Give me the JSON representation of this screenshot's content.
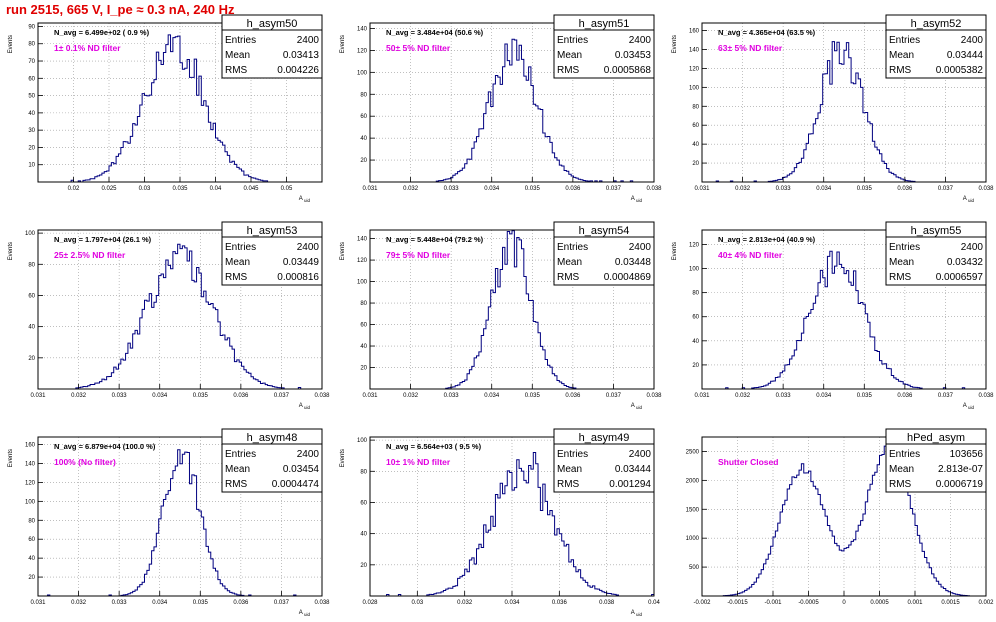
{
  "page": {
    "title": "run 2515,   665 V, I_pe ≈ 0.3 nA, 240 Hz"
  },
  "chart_data": [
    {
      "type": "histogram",
      "name": "h_asym50",
      "navg": "N_avg = 6.499e+02 ( 0.9 %)",
      "filter": "1± 0.1% ND filter",
      "stats": {
        "entries": "2400",
        "mean": "0.03413",
        "rms": "0.004226"
      },
      "ylabel": "Events",
      "xlabel": "A_uid",
      "xlim": [
        0.015,
        0.055
      ],
      "ylim": [
        0,
        92
      ],
      "xticks": [
        0.02,
        0.025,
        0.03,
        0.035,
        0.04,
        0.045,
        0.05
      ],
      "xtick_labels": [
        "0.02",
        "0.025",
        "0.03",
        "0.035",
        "0.04",
        "0.045",
        "0.05"
      ],
      "yticks": [
        10,
        20,
        30,
        40,
        50,
        60,
        70,
        80,
        90
      ],
      "ytick_labels": [
        "10",
        "20",
        "30",
        "40",
        "50",
        "60",
        "70",
        "80",
        "90"
      ],
      "peak": {
        "mean": 0.0341,
        "sigma": 0.0042,
        "height": 80,
        "noise": 0.12
      }
    },
    {
      "type": "histogram",
      "name": "h_asym51",
      "navg": "N_avg = 3.484e+04 (50.6 %)",
      "filter": "50± 5% ND filter",
      "stats": {
        "entries": "2400",
        "mean": "0.03453",
        "rms": "0.0005868"
      },
      "ylabel": "Events",
      "xlabel": "A_uid",
      "xlim": [
        0.031,
        0.038
      ],
      "ylim": [
        0,
        145
      ],
      "xticks": [
        0.031,
        0.032,
        0.033,
        0.034,
        0.035,
        0.036,
        0.037,
        0.038
      ],
      "xtick_labels": [
        "0.031",
        "0.032",
        "0.033",
        "0.034",
        "0.035",
        "0.036",
        "0.037",
        "0.038"
      ],
      "yticks": [
        20,
        40,
        60,
        80,
        100,
        120,
        140
      ],
      "ytick_labels": [
        "20",
        "40",
        "60",
        "80",
        "100",
        "120",
        "140"
      ],
      "peak": {
        "mean": 0.03453,
        "sigma": 0.00059,
        "height": 118,
        "noise": 0.1
      }
    },
    {
      "type": "histogram",
      "name": "h_asym52",
      "navg": "N_avg = 4.365e+04 (63.5 %)",
      "filter": "63± 5% ND filter",
      "stats": {
        "entries": "2400",
        "mean": "0.03444",
        "rms": "0.0005382"
      },
      "ylabel": "Events",
      "xlabel": "A_uid",
      "xlim": [
        0.031,
        0.038
      ],
      "ylim": [
        0,
        168
      ],
      "xticks": [
        0.031,
        0.032,
        0.033,
        0.034,
        0.035,
        0.036,
        0.037,
        0.038
      ],
      "xtick_labels": [
        "0.031",
        "0.032",
        "0.033",
        "0.034",
        "0.035",
        "0.036",
        "0.037",
        "0.038"
      ],
      "yticks": [
        20,
        40,
        60,
        80,
        100,
        120,
        140,
        160
      ],
      "ytick_labels": [
        "20",
        "40",
        "60",
        "80",
        "100",
        "120",
        "140",
        "160"
      ],
      "peak": {
        "mean": 0.03444,
        "sigma": 0.00054,
        "height": 140,
        "noise": 0.12
      }
    },
    {
      "type": "histogram",
      "name": "h_asym53",
      "navg": "N_avg = 1.797e+04 (26.1 %)",
      "filter": "25± 2.5% ND filter",
      "stats": {
        "entries": "2400",
        "mean": "0.03449",
        "rms": "0.000816"
      },
      "ylabel": "Events",
      "xlabel": "A_uid",
      "xlim": [
        0.031,
        0.038
      ],
      "ylim": [
        0,
        102
      ],
      "xticks": [
        0.031,
        0.032,
        0.033,
        0.034,
        0.035,
        0.036,
        0.037,
        0.038
      ],
      "xtick_labels": [
        "0.031",
        "0.032",
        "0.033",
        "0.034",
        "0.035",
        "0.036",
        "0.037",
        "0.038"
      ],
      "yticks": [
        20,
        40,
        60,
        80,
        100
      ],
      "ytick_labels": [
        "20",
        "40",
        "60",
        "80",
        "100"
      ],
      "peak": {
        "mean": 0.03449,
        "sigma": 0.00082,
        "height": 85,
        "noise": 0.12
      }
    },
    {
      "type": "histogram",
      "name": "h_asym54",
      "navg": "N_avg = 5.448e+04 (79.2 %)",
      "filter": "79± 5% ND filter",
      "stats": {
        "entries": "2400",
        "mean": "0.03448",
        "rms": "0.0004869"
      },
      "ylabel": "Events",
      "xlabel": "A_uid",
      "xlim": [
        0.031,
        0.038
      ],
      "ylim": [
        0,
        148
      ],
      "xticks": [
        0.031,
        0.032,
        0.033,
        0.034,
        0.035,
        0.036,
        0.037,
        0.038
      ],
      "xtick_labels": [
        "0.031",
        "0.032",
        "0.033",
        "0.034",
        "0.035",
        "0.036",
        "0.037",
        "0.038"
      ],
      "yticks": [
        20,
        40,
        60,
        80,
        100,
        120,
        140
      ],
      "ytick_labels": [
        "20",
        "40",
        "60",
        "80",
        "100",
        "120",
        "140"
      ],
      "peak": {
        "mean": 0.03448,
        "sigma": 0.00049,
        "height": 135,
        "noise": 0.12
      }
    },
    {
      "type": "histogram",
      "name": "h_asym55",
      "navg": "N_avg = 2.813e+04 (40.9 %)",
      "filter": "40± 4% ND filter",
      "stats": {
        "entries": "2400",
        "mean": "0.03432",
        "rms": "0.0006597"
      },
      "ylabel": "Events",
      "xlabel": "A_uid",
      "xlim": [
        0.031,
        0.038
      ],
      "ylim": [
        0,
        132
      ],
      "xticks": [
        0.031,
        0.032,
        0.033,
        0.034,
        0.035,
        0.036,
        0.037,
        0.038
      ],
      "xtick_labels": [
        "0.031",
        "0.032",
        "0.033",
        "0.034",
        "0.035",
        "0.036",
        "0.037",
        "0.038"
      ],
      "yticks": [
        20,
        40,
        60,
        80,
        100,
        120
      ],
      "ytick_labels": [
        "20",
        "40",
        "60",
        "80",
        "100",
        "120"
      ],
      "peak": {
        "mean": 0.03432,
        "sigma": 0.00066,
        "height": 108,
        "noise": 0.1
      }
    },
    {
      "type": "histogram",
      "name": "h_asym48",
      "navg": "N_avg = 6.879e+04 (100.0 %)",
      "filter": "100% (No filter)",
      "stats": {
        "entries": "2400",
        "mean": "0.03454",
        "rms": "0.0004474"
      },
      "ylabel": "Events",
      "xlabel": "A_uid",
      "xlim": [
        0.031,
        0.038
      ],
      "ylim": [
        0,
        168
      ],
      "xticks": [
        0.031,
        0.032,
        0.033,
        0.034,
        0.035,
        0.036,
        0.037,
        0.038
      ],
      "xtick_labels": [
        "0.031",
        "0.032",
        "0.033",
        "0.034",
        "0.035",
        "0.036",
        "0.037",
        "0.038"
      ],
      "yticks": [
        20,
        40,
        60,
        80,
        100,
        120,
        140,
        160
      ],
      "ytick_labels": [
        "20",
        "40",
        "60",
        "80",
        "100",
        "120",
        "140",
        "160"
      ],
      "peak": {
        "mean": 0.03454,
        "sigma": 0.00045,
        "height": 150,
        "noise": 0.1
      }
    },
    {
      "type": "histogram",
      "name": "h_asym49",
      "navg": "N_avg = 6.564e+03 ( 9.5 %)",
      "filter": "10± 1% ND filter",
      "stats": {
        "entries": "2400",
        "mean": "0.03444",
        "rms": "0.001294"
      },
      "ylabel": "Events",
      "xlabel": "A_uid",
      "xlim": [
        0.028,
        0.04
      ],
      "ylim": [
        0,
        102
      ],
      "xticks": [
        0.028,
        0.03,
        0.032,
        0.034,
        0.036,
        0.038,
        0.04
      ],
      "xtick_labels": [
        "0.028",
        "0.03",
        "0.032",
        "0.034",
        "0.036",
        "0.038",
        "0.04"
      ],
      "yticks": [
        20,
        40,
        60,
        80,
        100
      ],
      "ytick_labels": [
        "20",
        "40",
        "60",
        "80",
        "100"
      ],
      "peak": {
        "mean": 0.03444,
        "sigma": 0.0013,
        "height": 82,
        "noise": 0.14
      }
    },
    {
      "type": "histogram",
      "name": "hPed_asym",
      "navg": "",
      "filter": "Shutter Closed",
      "stats": {
        "entries": "103656",
        "mean": "2.813e-07",
        "rms": "0.0006719"
      },
      "ylabel": "",
      "xlabel": "",
      "xlim": [
        -0.002,
        0.002
      ],
      "ylim": [
        0,
        2750
      ],
      "xticks": [
        -0.002,
        -0.0015,
        -0.001,
        -0.0005,
        0,
        0.0005,
        0.001,
        0.0015,
        0.002
      ],
      "xtick_labels": [
        "-0.002",
        "-0.0015",
        "-0.001",
        "-0.0005",
        "0",
        "0.0005",
        "0.001",
        "0.0015",
        "0.002"
      ],
      "yticks": [
        500,
        1000,
        1500,
        2000,
        2500
      ],
      "ytick_labels": [
        "500",
        "1000",
        "1500",
        "2000",
        "2500"
      ],
      "bimodal": {
        "m1": -0.00058,
        "m2": 0.00063,
        "sigma": 0.00032,
        "h1": 2200,
        "h2": 2550,
        "noise": 0.04
      }
    }
  ]
}
